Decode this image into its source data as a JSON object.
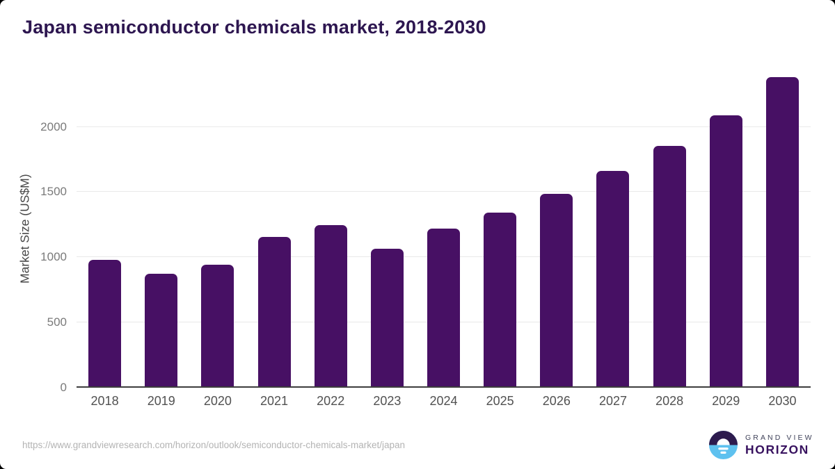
{
  "chart_data": {
    "type": "bar",
    "title": "Japan semiconductor chemicals market, 2018-2030",
    "categories": [
      "2018",
      "2019",
      "2020",
      "2021",
      "2022",
      "2023",
      "2024",
      "2025",
      "2026",
      "2027",
      "2028",
      "2029",
      "2030"
    ],
    "values": [
      980,
      875,
      945,
      1155,
      1245,
      1065,
      1220,
      1340,
      1485,
      1660,
      1855,
      2090,
      2380
    ],
    "xlabel": "",
    "ylabel": "Market Size (US$M)",
    "yticks": [
      0,
      500,
      1000,
      1500,
      2000
    ],
    "ylim": [
      0,
      2440
    ],
    "grid": true,
    "legend_position": "none",
    "bar_color": "#471064"
  },
  "footer": {
    "source_url": "https://www.grandviewresearch.com/horizon/outlook/semiconductor-chemicals-market/japan",
    "logo": {
      "top": "GRAND VIEW",
      "bottom": "HORIZON"
    }
  },
  "colors": {
    "bar": "#471064",
    "title_text": "#2d1650",
    "logo_navy_half": "#2d1b4e",
    "logo_blue_half": "#5ec1ef",
    "gridline": "#e9e9e9",
    "baseline": "#3d3d3d"
  }
}
